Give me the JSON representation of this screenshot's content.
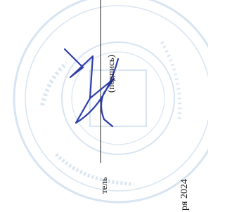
{
  "document": {
    "signature_caption": "(подпись)",
    "role_fragment": "тель",
    "date_fragment": "ря 2024"
  }
}
